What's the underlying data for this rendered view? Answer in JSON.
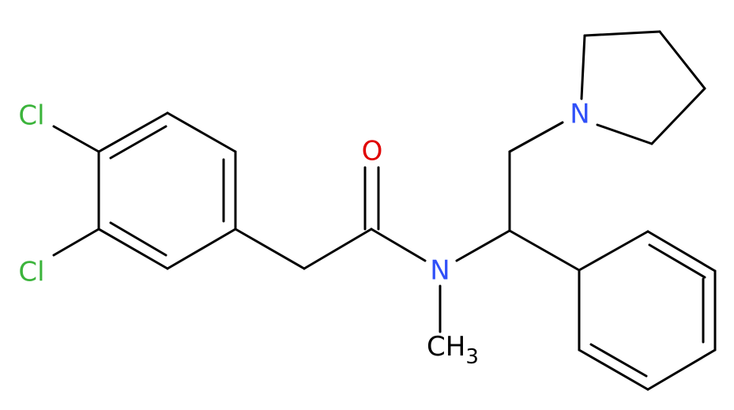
{
  "atoms": [
    {
      "label": "Cl"
    },
    {
      "label": "Cl"
    },
    {
      "label": "O"
    },
    {
      "label": "N"
    },
    {
      "label": "N"
    },
    {
      "label": "CH",
      "subscript": "3"
    }
  ]
}
